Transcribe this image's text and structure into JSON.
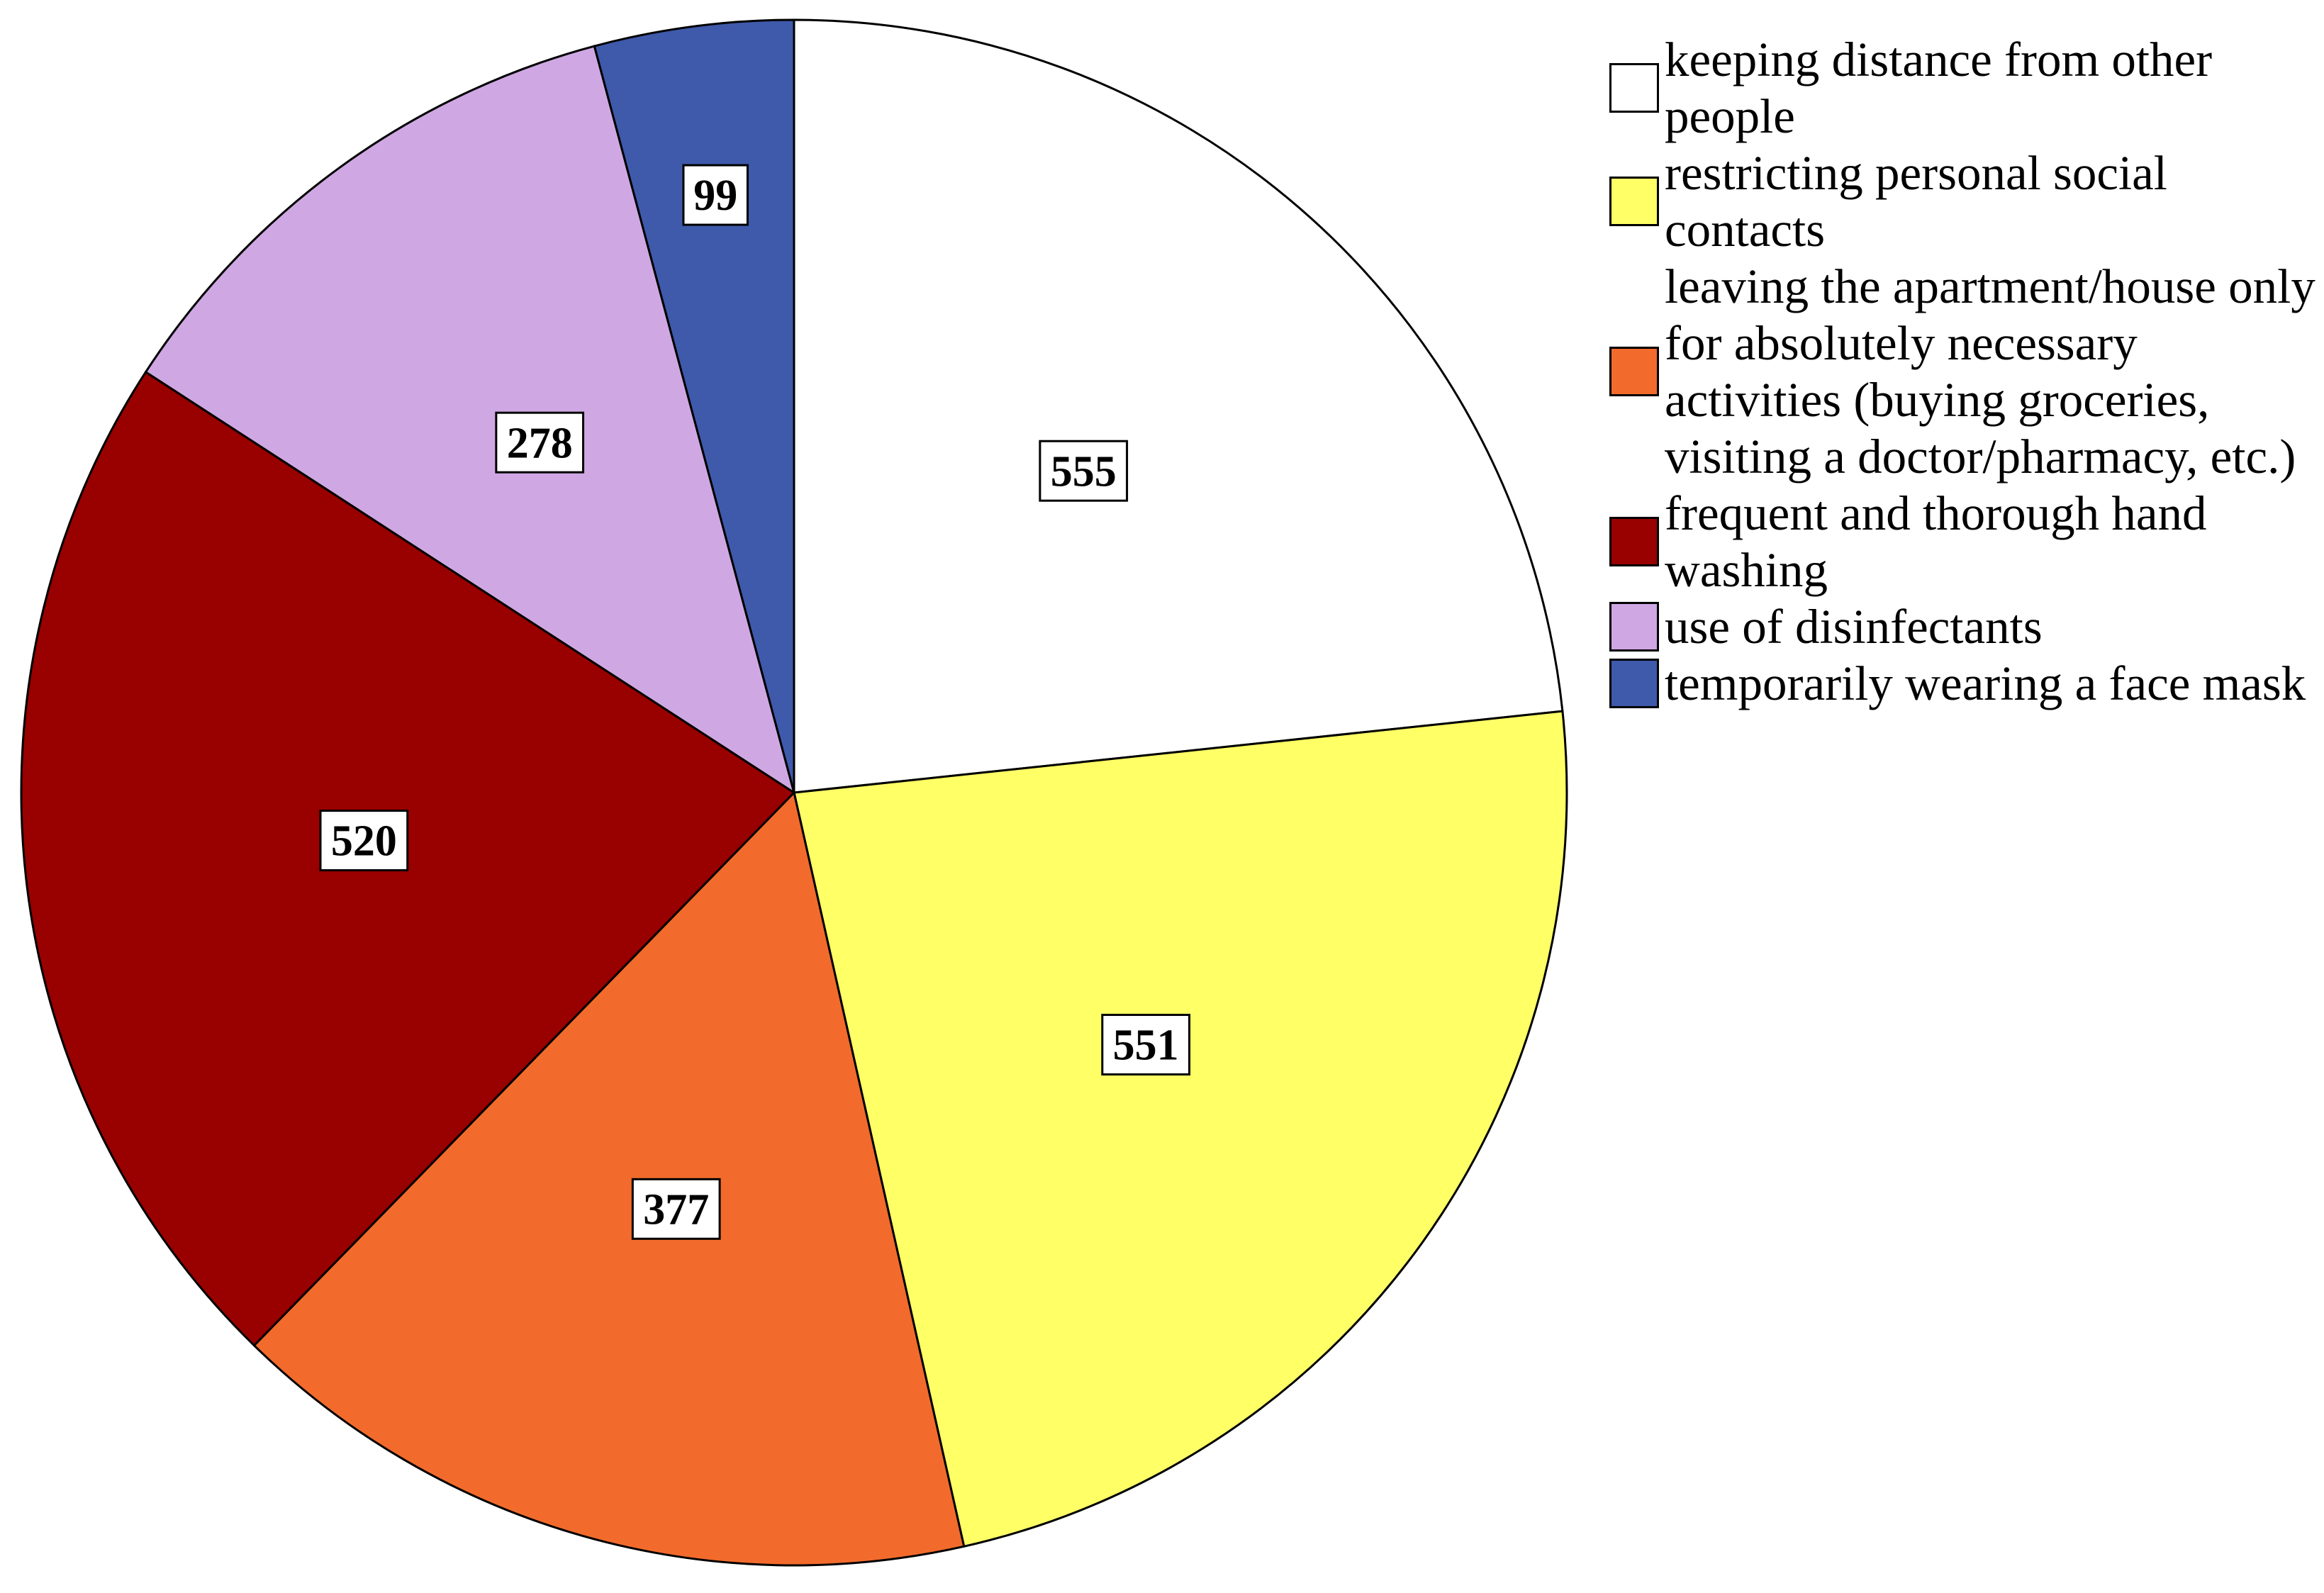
{
  "chart_data": {
    "type": "pie",
    "title": "",
    "categories": [
      "keeping distance from other people",
      "restricting personal social contacts",
      "leaving the apartment/house only for absolutely necessary activities (buying groceries, visiting a doctor/pharmacy, etc.)",
      "frequent and thorough hand washing",
      "use of disinfectants",
      "temporarily wearing a face mask"
    ],
    "values": [
      555,
      551,
      377,
      520,
      278,
      99
    ],
    "colors": [
      "#ffffff",
      "#ffff66",
      "#f26b2c",
      "#990000",
      "#cfa8e3",
      "#3f5aaa"
    ],
    "data_labels": [
      "555",
      "551",
      "377",
      "520",
      "278",
      "99"
    ],
    "start_angle": "12 o'clock",
    "direction": "clockwise",
    "legend_position": "right"
  }
}
